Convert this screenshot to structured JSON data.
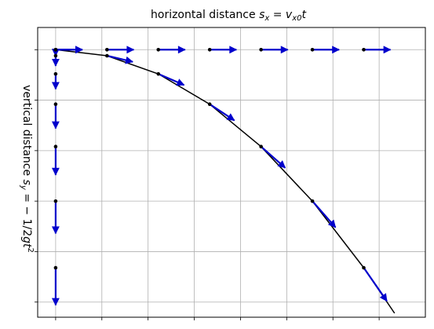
{
  "chart_data": {
    "type": "scatter",
    "title_parts": [
      "horizontal distance ",
      "s",
      "x",
      " = ",
      "v",
      "x0",
      "t"
    ],
    "ylabel_parts": [
      "vertical distance ",
      "s",
      "y",
      " = − 1/2",
      "g",
      "t",
      "2"
    ],
    "grid": true,
    "ylim": [
      -26.5,
      2.2
    ],
    "xlim": [
      -0.35,
      7.2
    ],
    "colors": {
      "arrow": "#0000cc",
      "trajectory": "#000000",
      "grid": "#b0b0b0",
      "point": "#000000"
    },
    "trajectory": {
      "name": "path",
      "x": [
        0,
        1,
        2,
        3,
        4,
        5,
        6,
        6.6
      ],
      "y": [
        0,
        -0.6,
        -2.4,
        -5.4,
        -9.6,
        -15,
        -21.6,
        -26.1
      ]
    },
    "horizontal_points": {
      "x": [
        0,
        1,
        2,
        3,
        4,
        5,
        6
      ],
      "y": [
        0,
        0,
        0,
        0,
        0,
        0,
        0
      ]
    },
    "vertical_points": {
      "x": [
        0,
        0,
        0,
        0,
        0,
        0,
        0
      ],
      "y": [
        0,
        -0.6,
        -2.4,
        -5.4,
        -9.6,
        -15,
        -21.6
      ]
    },
    "trajectory_points": {
      "x": [
        0,
        1,
        2,
        3,
        4,
        5,
        6
      ],
      "y": [
        0,
        -0.6,
        -2.4,
        -5.4,
        -9.6,
        -15,
        -21.6
      ]
    },
    "horizontal_arrows": {
      "x": [
        0,
        1,
        2,
        3,
        4,
        5,
        6
      ],
      "y": [
        0,
        0,
        0,
        0,
        0,
        0,
        0
      ],
      "u": [
        0.52,
        0.52,
        0.52,
        0.52,
        0.52,
        0.52,
        0.52
      ],
      "v": [
        0,
        0,
        0,
        0,
        0,
        0,
        0
      ]
    },
    "vertical_arrows": {
      "x": [
        0,
        0,
        0,
        0,
        0,
        0,
        0
      ],
      "y": [
        0,
        -0.6,
        -2.4,
        -5.4,
        -9.6,
        -15,
        -21.6
      ],
      "u": [
        0,
        0,
        0,
        0,
        0,
        0,
        0
      ],
      "v": [
        -0.6,
        -1.0,
        -1.5,
        -2.4,
        -2.8,
        -3.2,
        -3.7
      ]
    },
    "trajectory_arrows": {
      "x": [
        0,
        1,
        2,
        3,
        4,
        5,
        6
      ],
      "y": [
        0,
        -0.6,
        -2.4,
        -5.4,
        -9.6,
        -15,
        -21.6
      ],
      "u": [
        0.52,
        0.5,
        0.5,
        0.48,
        0.47,
        0.45,
        0.45
      ],
      "v": [
        0,
        -0.6,
        -1.1,
        -1.6,
        -2.1,
        -2.6,
        -3.3
      ]
    },
    "x_ticks": [
      0,
      0.9,
      1.8,
      2.7,
      3.6,
      4.5,
      5.4,
      6.3
    ],
    "y_ticks": [
      0,
      -5,
      -10,
      -15,
      -20,
      -25
    ]
  }
}
